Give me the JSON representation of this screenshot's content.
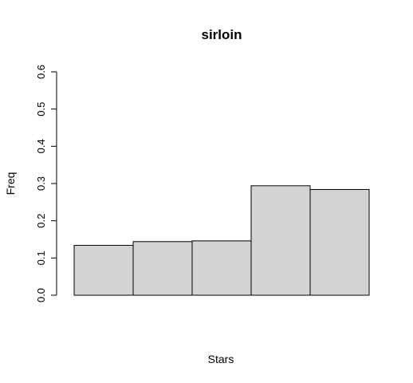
{
  "chart_data": {
    "type": "bar",
    "title": "sirloin",
    "xlabel": "Stars",
    "ylabel": "Freq",
    "categories": [
      "",
      "",
      "",
      "",
      ""
    ],
    "values": [
      0.134,
      0.144,
      0.146,
      0.294,
      0.284
    ],
    "ylim": [
      0,
      0.6
    ],
    "yticks": [
      "0.0",
      "0.1",
      "0.2",
      "0.3",
      "0.4",
      "0.5",
      "0.6"
    ],
    "grid": false,
    "bar_color": "#d3d3d3",
    "border_color": "#000000"
  }
}
